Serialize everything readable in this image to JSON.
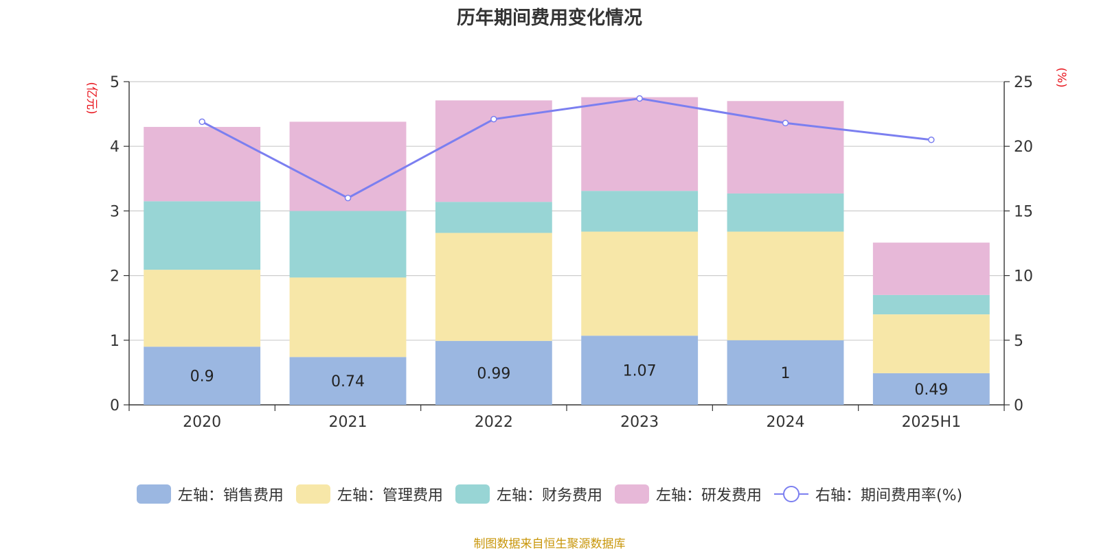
{
  "title": "历年期间费用变化情况",
  "source": "制图数据来自恒生聚源数据库",
  "chart_data": {
    "type": "bar",
    "stacked": true,
    "categories": [
      "2020",
      "2021",
      "2022",
      "2023",
      "2024",
      "2025H1"
    ],
    "left_axis": {
      "unit": "(亿元)",
      "ylim": [
        0,
        5
      ],
      "ticks": [
        "0",
        "1",
        "2",
        "3",
        "4",
        "5"
      ]
    },
    "right_axis": {
      "unit": "(%)",
      "ylim": [
        0,
        25
      ],
      "ticks": [
        "0",
        "5",
        "10",
        "15",
        "20",
        "25"
      ]
    },
    "series": [
      {
        "name": "左轴：销售费用",
        "axis": "left",
        "type": "bar",
        "color": "#9bb7e1",
        "values": [
          0.9,
          0.74,
          0.99,
          1.07,
          1,
          0.49
        ],
        "labels": [
          "0.9",
          "0.74",
          "0.99",
          "1.07",
          "1",
          "0.49"
        ]
      },
      {
        "name": "左轴：管理费用",
        "axis": "left",
        "type": "bar",
        "color": "#f7e7a8",
        "values": [
          1.19,
          1.23,
          1.67,
          1.61,
          1.68,
          0.91
        ]
      },
      {
        "name": "左轴：财务费用",
        "axis": "left",
        "type": "bar",
        "color": "#98d5d5",
        "values": [
          1.06,
          1.03,
          0.48,
          0.63,
          0.59,
          0.3
        ]
      },
      {
        "name": "左轴：研发费用",
        "axis": "left",
        "type": "bar",
        "color": "#e7b8d8",
        "values": [
          1.15,
          1.38,
          1.57,
          1.45,
          1.43,
          0.81
        ]
      },
      {
        "name": "右轴：期间费用率(%)",
        "axis": "right",
        "type": "line",
        "color": "#7b7ff0",
        "values": [
          21.9,
          16,
          22.1,
          23.7,
          21.8,
          20.5
        ]
      }
    ],
    "grid": true,
    "legend_position": "bottom"
  }
}
